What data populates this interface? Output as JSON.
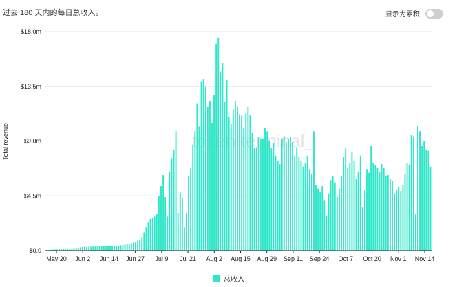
{
  "header": {
    "caption": "过去 180 天内的每日总收入。"
  },
  "toggle": {
    "label": "显示为累积",
    "on": false
  },
  "watermark": "token terminal_",
  "colors": {
    "bar": "#2ee6c8",
    "grid": "#e5e5e5",
    "axis": "#222222"
  },
  "chart_data": {
    "type": "bar",
    "ylabel": "Total revenue",
    "yticks": [
      "$0.0",
      "$4.5m",
      "$9.0m",
      "$13.5m",
      "$18.0m"
    ],
    "ylim": [
      0,
      18.0
    ],
    "xticks": [
      "May 20",
      "Jun 2",
      "Jun 14",
      "Jun 27",
      "Jul 9",
      "Jul 21",
      "Aug 2",
      "Aug 15",
      "Aug 29",
      "Sep 11",
      "Sep 24",
      "Oct 7",
      "Oct 20",
      "Nov 1",
      "Nov 14"
    ],
    "legend": [
      "总收入"
    ],
    "grid": true,
    "series": [
      {
        "name": "总收入",
        "values": [
          0.05,
          0.06,
          0.07,
          0.08,
          0.08,
          0.09,
          0.1,
          0.11,
          0.12,
          0.13,
          0.14,
          0.16,
          0.18,
          0.2,
          0.22,
          0.24,
          0.26,
          0.28,
          0.3,
          0.3,
          0.31,
          0.32,
          0.32,
          0.33,
          0.33,
          0.34,
          0.34,
          0.35,
          0.35,
          0.36,
          0.37,
          0.38,
          0.38,
          0.39,
          0.4,
          0.42,
          0.45,
          0.48,
          0.52,
          0.55,
          0.6,
          0.65,
          0.7,
          0.8,
          0.9,
          1.1,
          1.5,
          1.9,
          2.3,
          2.6,
          2.7,
          2.8,
          3.0,
          4.5,
          5.3,
          6.2,
          4.4,
          2.8,
          6.5,
          7.6,
          8.3,
          9.8,
          3.1,
          4.8,
          4.3,
          1.9,
          3.1,
          6.1,
          6.8,
          8.7,
          9.8,
          12.1,
          10.2,
          13.9,
          14.1,
          13.5,
          11.8,
          12.3,
          10.5,
          12.8,
          17.0,
          17.5,
          14.7,
          15.4,
          12.2,
          14.0,
          11.0,
          10.4,
          11.6,
          12.3,
          11.8,
          11.2,
          11.1,
          10.1,
          11.3,
          11.8,
          11.1,
          9.7,
          8.4,
          8.5,
          9.3,
          9.2,
          9.2,
          10.1,
          9.8,
          9.0,
          8.4,
          8.8,
          7.8,
          7.4,
          7.1,
          9.2,
          9.4,
          8.9,
          9.2,
          9.3,
          8.9,
          7.8,
          8.5,
          7.7,
          7.4,
          6.9,
          7.2,
          7.8,
          6.7,
          6.3,
          9.8,
          5.4,
          5.1,
          4.8,
          5.3,
          4.1,
          2.9,
          4.7,
          5.8,
          6.1,
          5.6,
          4.4,
          5.1,
          6.1,
          7.7,
          8.4,
          6.8,
          7.2,
          8.1,
          7.4,
          5.9,
          6.5,
          7.8,
          3.6,
          5.0,
          6.7,
          6.4,
          8.6,
          7.2,
          7.0,
          6.8,
          6.5,
          7.1,
          6.8,
          6.1,
          6.2,
          5.9,
          5.7,
          4.7,
          5.0,
          5.2,
          4.9,
          5.4,
          6.3,
          7.2,
          7.0,
          9.5,
          9.4,
          3.0,
          10.2,
          9.8,
          8.6,
          9.0,
          8.3,
          8.2,
          6.9
        ]
      }
    ]
  }
}
